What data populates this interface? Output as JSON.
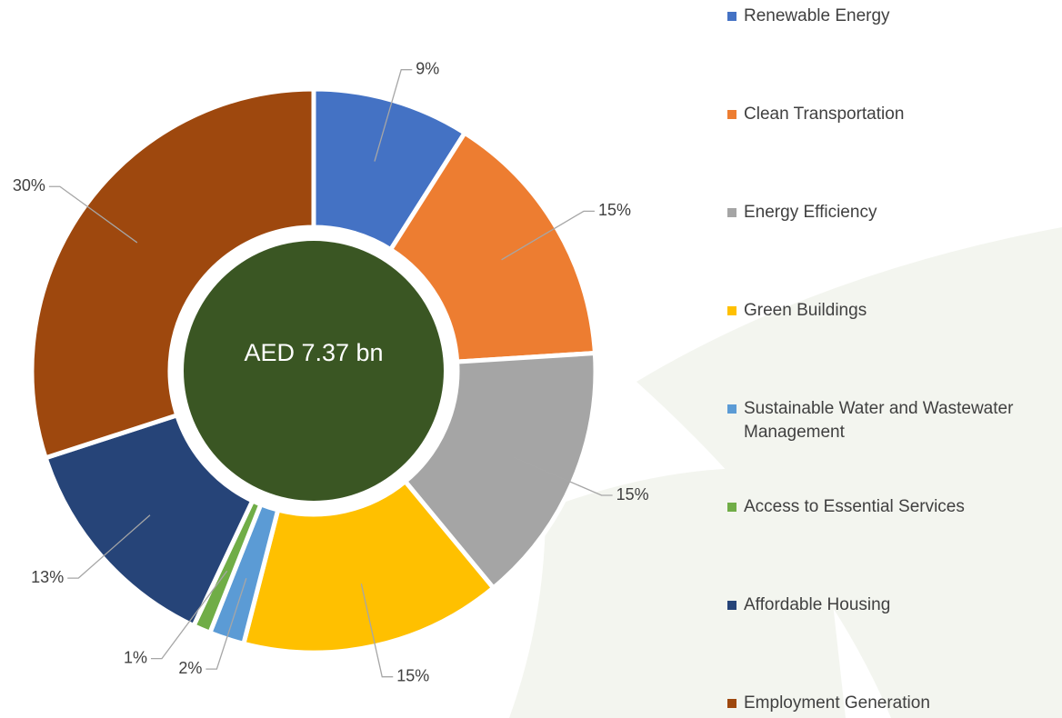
{
  "chart_data": {
    "type": "donut",
    "center_label": "AED 7.37 bn",
    "center_color": "#3a5623",
    "categories": [
      "Renewable Energy",
      "Clean Transportation",
      "Energy Efficiency",
      "Green Buildings",
      "Sustainable Water and Wastewater Management",
      "Access to Essential Services",
      "Affordable Housing",
      "Employment Generation"
    ],
    "values": [
      9,
      15,
      15,
      15,
      2,
      1,
      13,
      30
    ],
    "value_labels": [
      "9%",
      "15%",
      "15%",
      "15%",
      "2%",
      "1%",
      "13%",
      "30%"
    ],
    "colors": [
      "#4472c4",
      "#ed7d31",
      "#a5a5a5",
      "#ffc000",
      "#5b9bd5",
      "#70ad47",
      "#264478",
      "#9e480e"
    ],
    "legend": "right"
  }
}
